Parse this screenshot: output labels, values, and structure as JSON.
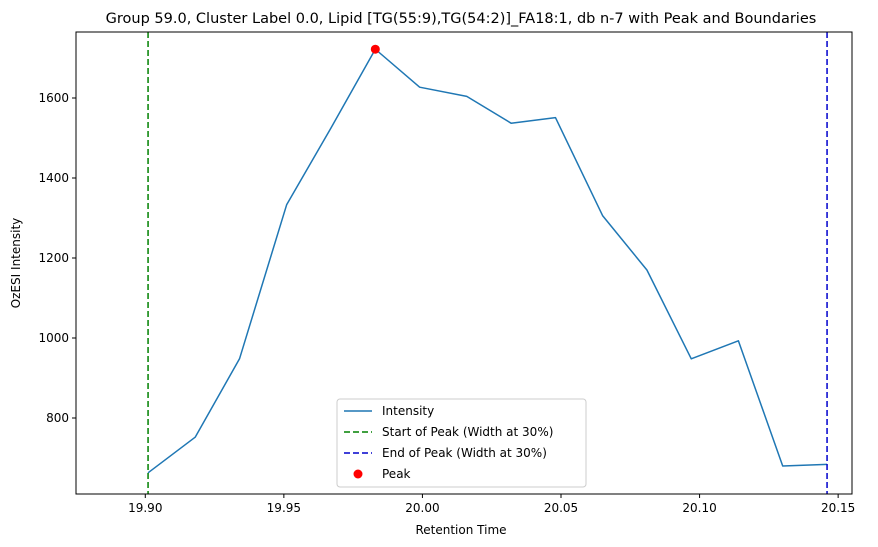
{
  "chart_data": {
    "type": "line",
    "title": "Group 59.0, Cluster Label 0.0, Lipid [TG(55:9),TG(54:2)]_FA18:1, db n-7 with Peak and Boundaries",
    "xlabel": "Retention Time",
    "ylabel": "OzESI Intensity",
    "xlim": [
      19.875,
      20.155
    ],
    "ylim": [
      610,
      1765
    ],
    "xticks": [
      19.9,
      19.95,
      20.0,
      20.05,
      20.1,
      20.15
    ],
    "xtick_labels": [
      "19.90",
      "19.95",
      "20.00",
      "20.05",
      "20.10",
      "20.15"
    ],
    "yticks": [
      800,
      1000,
      1200,
      1400,
      1600
    ],
    "ytick_labels": [
      "800",
      "1000",
      "1200",
      "1400",
      "1600"
    ],
    "grid": false,
    "legend_position": "bottom-center",
    "series": [
      {
        "name": "Intensity",
        "kind": "line",
        "color": "#1f77b4",
        "x": [
          19.901,
          19.918,
          19.934,
          19.951,
          19.967,
          19.983,
          19.999,
          20.016,
          20.032,
          20.048,
          20.065,
          20.081,
          20.097,
          20.114,
          20.13,
          20.146
        ],
        "y": [
          663,
          752,
          948,
          1333,
          1525,
          1722,
          1627,
          1604,
          1537,
          1551,
          1306,
          1170,
          948,
          993,
          680,
          684
        ]
      },
      {
        "name": "Start of Peak (Width at 30%)",
        "kind": "vline",
        "color": "#008000",
        "x": 19.901
      },
      {
        "name": "End of Peak (Width at 30%)",
        "kind": "vline",
        "color": "#0000cc",
        "x": 20.146
      },
      {
        "name": "Peak",
        "kind": "scatter",
        "color": "#ff0000",
        "x": [
          19.983
        ],
        "y": [
          1722
        ]
      }
    ]
  }
}
